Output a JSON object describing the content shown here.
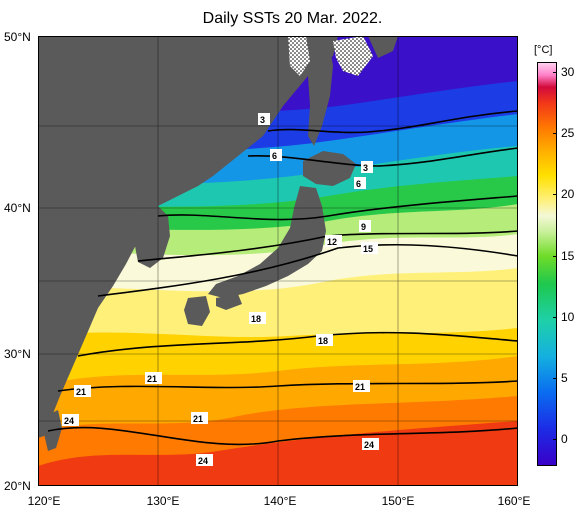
{
  "title": "Daily SSTs 20 Mar. 2022.",
  "axes": {
    "lat_labels": [
      "50°N",
      "40°N",
      "30°N",
      "20°N"
    ],
    "lon_labels": [
      "120°E",
      "130°E",
      "140°E",
      "150°E",
      "160°E"
    ]
  },
  "colorbar": {
    "unit": "[°C]",
    "ticks": [
      "30",
      "25",
      "20",
      "15",
      "10",
      "5",
      "0"
    ]
  },
  "contour_labels": [
    "3",
    "6",
    "3",
    "6",
    "9",
    "12",
    "15",
    "18",
    "18",
    "21",
    "21",
    "21",
    "21",
    "24",
    "24",
    "24"
  ],
  "colors": {
    "land": "#5a5a5a",
    "cold": "#1a2ad8",
    "warm": "#ff9a00"
  }
}
